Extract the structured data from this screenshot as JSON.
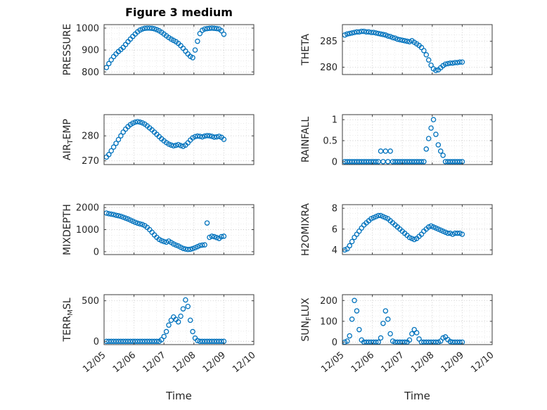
{
  "figure": {
    "title": "Figure 3 medium",
    "xlabel": "Time",
    "marker_color": "#0072BD",
    "axis_color": "#3c3c3c",
    "major_grid_color": "#c9c9c9",
    "minor_grid_color": "#e4e4e4",
    "background": "#ffffff"
  },
  "x_axis": {
    "lim": [
      0,
      5
    ],
    "tick_positions": [
      0,
      1,
      2,
      3,
      4,
      5
    ],
    "tick_labels": [
      "12/05",
      "12/06",
      "12/07",
      "12/08",
      "12/09",
      "12/10"
    ],
    "label": "Time",
    "minor_step": 0.25
  },
  "x_days": [
    0.08,
    0.16,
    0.24,
    0.32,
    0.4,
    0.48,
    0.56,
    0.64,
    0.72,
    0.8,
    0.88,
    0.96,
    1.04,
    1.12,
    1.2,
    1.28,
    1.36,
    1.44,
    1.52,
    1.6,
    1.68,
    1.76,
    1.84,
    1.92,
    2.0,
    2.08,
    2.16,
    2.24,
    2.32,
    2.4,
    2.48,
    2.56,
    2.64,
    2.72,
    2.8,
    2.88,
    2.96,
    3.04,
    3.12,
    3.2,
    3.28,
    3.36,
    3.44,
    3.52,
    3.6,
    3.68,
    3.76,
    3.84,
    3.92,
    4.0
  ],
  "chart_data": [
    {
      "name": "PRESSURE",
      "type": "scatter",
      "ylabel_pre": "PRESSURE",
      "ylabel_sub": "",
      "ylabel_post": "",
      "yticks": [
        800,
        900,
        1000
      ],
      "ytick_labels": [
        "800",
        "900",
        "1000"
      ],
      "ylim": [
        788,
        1016
      ],
      "y": [
        820,
        838,
        855,
        870,
        882,
        893,
        902,
        912,
        925,
        938,
        950,
        962,
        973,
        983,
        991,
        996,
        999,
        1000,
        1000,
        999,
        997,
        993,
        988,
        981,
        973,
        965,
        957,
        950,
        944,
        938,
        930,
        920,
        908,
        895,
        882,
        871,
        865,
        900,
        940,
        975,
        990,
        996,
        998,
        999,
        1000,
        999,
        998,
        996,
        988,
        972
      ]
    },
    {
      "name": "THETA",
      "type": "scatter",
      "ylabel_pre": "THETA",
      "ylabel_sub": "",
      "ylabel_post": "",
      "yticks": [
        280,
        285
      ],
      "ytick_labels": [
        "280",
        "285"
      ],
      "ylim": [
        278.6,
        288.2
      ],
      "y": [
        286.2,
        286.4,
        286.5,
        286.6,
        286.7,
        286.8,
        286.8,
        286.9,
        286.9,
        286.8,
        286.8,
        286.7,
        286.7,
        286.6,
        286.5,
        286.4,
        286.3,
        286.2,
        286.0,
        285.9,
        285.7,
        285.6,
        285.4,
        285.3,
        285.2,
        285.1,
        285.0,
        284.9,
        285.1,
        284.8,
        284.5,
        284.2,
        283.8,
        283.2,
        282.4,
        281.4,
        280.4,
        279.7,
        279.4,
        279.5,
        279.9,
        280.3,
        280.6,
        280.7,
        280.8,
        280.8,
        280.9,
        280.9,
        281.0,
        281.0
      ]
    },
    {
      "name": "AIR_TEMP",
      "type": "scatter",
      "ylabel_pre": "AIR",
      "ylabel_sub": "T",
      "ylabel_post": "EMP",
      "yticks": [
        270,
        280
      ],
      "ytick_labels": [
        "270",
        "280"
      ],
      "ylim": [
        268.5,
        288.5
      ],
      "y": [
        271.5,
        272.5,
        274.0,
        275.5,
        277.0,
        278.5,
        280.0,
        281.5,
        282.7,
        283.7,
        284.5,
        285.1,
        285.5,
        285.7,
        285.5,
        285.2,
        284.7,
        284.0,
        283.2,
        282.4,
        281.5,
        280.6,
        279.7,
        278.8,
        278.0,
        277.3,
        276.7,
        276.3,
        276.0,
        276.2,
        276.5,
        276.1,
        275.8,
        276.3,
        277.2,
        278.3,
        279.2,
        279.7,
        279.9,
        279.8,
        279.6,
        279.9,
        280.1,
        280.0,
        279.8,
        279.5,
        279.6,
        279.8,
        279.4,
        278.6
      ]
    },
    {
      "name": "RAINFALL",
      "type": "scatter",
      "ylabel_pre": "RAINFALL",
      "ylabel_sub": "",
      "ylabel_post": "",
      "yticks": [
        0,
        0.5,
        1
      ],
      "ytick_labels": [
        "0",
        "0.5",
        "1"
      ],
      "ylim": [
        -0.07,
        1.12
      ],
      "y": [
        0,
        0,
        0,
        0,
        0,
        0,
        0,
        0,
        0,
        0,
        0,
        0,
        0,
        0,
        0,
        0.25,
        0,
        0.25,
        0,
        0.25,
        0,
        0,
        0,
        0,
        0,
        0,
        0,
        0,
        0,
        0,
        0,
        0,
        0,
        0,
        0.3,
        0.55,
        0.8,
        1.0,
        0.65,
        0.4,
        0.25,
        0.15,
        0,
        0,
        0,
        0,
        0,
        0,
        0,
        0
      ]
    },
    {
      "name": "MIXDEPTH",
      "type": "scatter",
      "ylabel_pre": "MIXDEPTH",
      "ylabel_sub": "",
      "ylabel_post": "",
      "yticks": [
        0,
        1000,
        2000
      ],
      "ytick_labels": [
        "0",
        "1000",
        "2000"
      ],
      "ylim": [
        -130,
        2130
      ],
      "y": [
        1750,
        1720,
        1700,
        1680,
        1650,
        1630,
        1600,
        1560,
        1520,
        1480,
        1430,
        1380,
        1330,
        1290,
        1260,
        1230,
        1180,
        1100,
        1000,
        880,
        760,
        650,
        560,
        500,
        460,
        430,
        480,
        420,
        350,
        300,
        260,
        200,
        150,
        120,
        100,
        110,
        140,
        180,
        230,
        280,
        300,
        310,
        1300,
        650,
        700,
        680,
        640,
        600,
        680,
        700
      ]
    },
    {
      "name": "H2OMIXRA",
      "type": "scatter",
      "ylabel_pre": "H2OMIXRA",
      "ylabel_sub": "",
      "ylabel_post": "",
      "yticks": [
        4,
        6,
        8
      ],
      "ytick_labels": [
        "4",
        "6",
        "8"
      ],
      "ylim": [
        3.55,
        8.35
      ],
      "y": [
        4.0,
        4.1,
        4.4,
        4.8,
        5.2,
        5.5,
        5.8,
        6.1,
        6.4,
        6.6,
        6.8,
        7.0,
        7.1,
        7.2,
        7.3,
        7.3,
        7.2,
        7.1,
        7.0,
        6.8,
        6.6,
        6.4,
        6.2,
        6.0,
        5.8,
        5.6,
        5.4,
        5.2,
        5.1,
        5.0,
        5.1,
        5.3,
        5.5,
        5.8,
        6.0,
        6.2,
        6.3,
        6.2,
        6.1,
        6.0,
        5.9,
        5.8,
        5.7,
        5.6,
        5.6,
        5.5,
        5.6,
        5.6,
        5.6,
        5.5
      ]
    },
    {
      "name": "TERR_MSL",
      "type": "scatter",
      "ylabel_pre": "TERR",
      "ylabel_sub": "M",
      "ylabel_post": "SL",
      "yticks": [
        0,
        500
      ],
      "ytick_labels": [
        "0",
        "500"
      ],
      "ylim": [
        -40,
        575
      ],
      "y": [
        0,
        0,
        0,
        0,
        0,
        0,
        0,
        0,
        0,
        0,
        0,
        0,
        0,
        0,
        0,
        0,
        0,
        0,
        0,
        0,
        0,
        0,
        0,
        20,
        60,
        120,
        200,
        260,
        300,
        270,
        240,
        310,
        400,
        510,
        430,
        260,
        120,
        40,
        10,
        0,
        0,
        0,
        0,
        0,
        0,
        0,
        0,
        0,
        0,
        0
      ]
    },
    {
      "name": "SUN_FLUX",
      "type": "scatter",
      "ylabel_pre": "SUN",
      "ylabel_sub": "F",
      "ylabel_post": "LUX",
      "yticks": [
        0,
        100,
        200
      ],
      "ytick_labels": [
        "0",
        "100",
        "200"
      ],
      "ylim": [
        -12,
        228
      ],
      "y": [
        0,
        5,
        30,
        110,
        200,
        150,
        60,
        10,
        0,
        0,
        0,
        0,
        0,
        0,
        0,
        20,
        90,
        150,
        110,
        40,
        5,
        0,
        0,
        0,
        0,
        0,
        0,
        10,
        40,
        60,
        45,
        15,
        0,
        0,
        0,
        0,
        0,
        0,
        0,
        0,
        5,
        20,
        25,
        12,
        3,
        0,
        0,
        0,
        0,
        0
      ]
    }
  ]
}
